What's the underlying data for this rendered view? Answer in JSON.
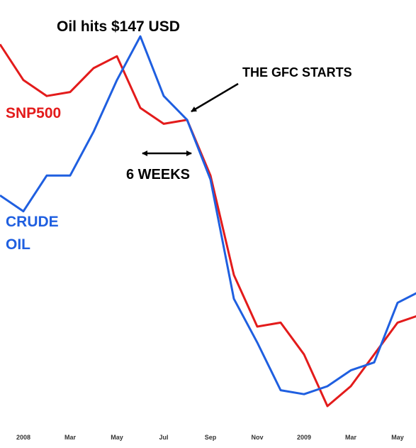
{
  "chart_data": {
    "type": "line",
    "annotations": [
      "Oil hits $147 USD",
      "THE GFC STARTS",
      "6 WEEKS"
    ],
    "categories": [
      null,
      "2008",
      null,
      "Mar",
      null,
      "May",
      null,
      "Jul",
      null,
      "Sep",
      null,
      "Nov",
      null,
      "2009",
      null,
      "Mar",
      null,
      "May",
      null
    ],
    "series": [
      {
        "name": "SNP500",
        "color": "#e31b1b",
        "values": [
          96,
          87,
          83,
          84,
          90,
          93,
          80,
          76,
          77,
          63,
          38,
          25,
          26,
          18,
          5,
          10,
          18,
          26,
          28
        ]
      },
      {
        "name": "CRUDE OIL",
        "color": "#1f5fe0",
        "values": [
          58,
          54,
          63,
          63,
          74,
          87,
          98,
          83,
          77,
          62,
          32,
          21,
          9,
          8,
          10,
          14,
          16,
          31,
          34
        ]
      }
    ],
    "ylim": [
      0,
      100
    ]
  }
}
